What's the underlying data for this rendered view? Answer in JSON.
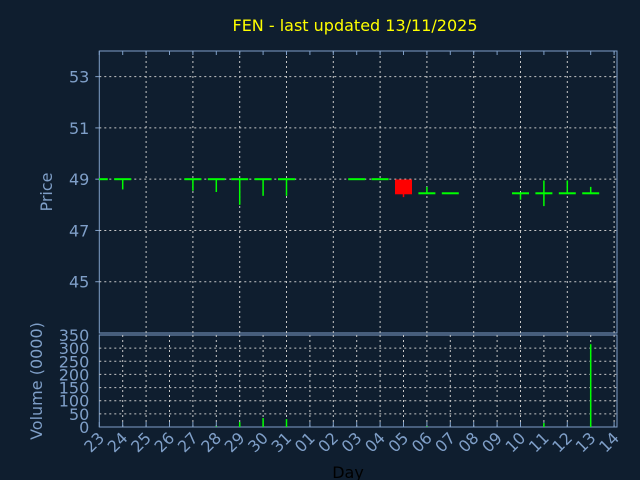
{
  "chart_data": [
    {
      "type": "candlestick",
      "title": "FEN - last updated 13/11/2025",
      "ylabel": "Price",
      "ylim": [
        43,
        54
      ],
      "yticks": [
        45,
        47,
        49,
        51,
        53
      ],
      "grid": true,
      "x_labels": [
        "23",
        "24",
        "25",
        "26",
        "27",
        "28",
        "29",
        "30",
        "31",
        "01",
        "02",
        "03",
        "04",
        "05",
        "06",
        "07",
        "08",
        "09",
        "10",
        "11",
        "12",
        "13",
        "14"
      ],
      "candles": [
        {
          "day": "23",
          "open": 49.0,
          "high": 49.0,
          "low": 49.0,
          "close": 49.0
        },
        {
          "day": "24",
          "open": 49.0,
          "high": 49.0,
          "low": 48.6,
          "close": 49.0
        },
        {
          "day": "27",
          "open": 49.0,
          "high": 49.0,
          "low": 48.55,
          "close": 49.0
        },
        {
          "day": "28",
          "open": 49.0,
          "high": 49.0,
          "low": 48.5,
          "close": 49.0
        },
        {
          "day": "29",
          "open": 49.0,
          "high": 49.0,
          "low": 48.0,
          "close": 49.0
        },
        {
          "day": "30",
          "open": 49.0,
          "high": 49.0,
          "low": 48.35,
          "close": 49.0
        },
        {
          "day": "31",
          "open": 49.0,
          "high": 49.0,
          "low": 48.35,
          "close": 49.0
        },
        {
          "day": "03",
          "open": 49.0,
          "high": 49.0,
          "low": 49.0,
          "close": 49.0
        },
        {
          "day": "04",
          "open": 49.0,
          "high": 49.0,
          "low": 49.0,
          "close": 49.0
        },
        {
          "day": "05",
          "open": 48.95,
          "high": 48.95,
          "low": 48.3,
          "close": 48.45
        },
        {
          "day": "06",
          "open": 48.45,
          "high": 48.7,
          "low": 48.45,
          "close": 48.45
        },
        {
          "day": "07",
          "open": 48.45,
          "high": 48.45,
          "low": 48.45,
          "close": 48.45
        },
        {
          "day": "10",
          "open": 48.45,
          "high": 48.45,
          "low": 48.2,
          "close": 48.45
        },
        {
          "day": "11",
          "open": 48.45,
          "high": 48.95,
          "low": 47.95,
          "close": 48.45
        },
        {
          "day": "12",
          "open": 48.45,
          "high": 48.95,
          "low": 48.45,
          "close": 48.45
        },
        {
          "day": "13",
          "open": 48.45,
          "high": 48.7,
          "low": 48.45,
          "close": 48.45
        }
      ],
      "colors": {
        "up": "#00ff00",
        "down": "#ff0000",
        "title": "#ffff00",
        "axis": "#7f9fc8",
        "grid": "#c8c8c8",
        "background": "#0f1e2f"
      }
    },
    {
      "type": "bar",
      "ylabel": "Volume (0000)",
      "xlabel": "Day",
      "ylim": [
        0,
        350
      ],
      "yticks": [
        0,
        50,
        100,
        150,
        200,
        250,
        300,
        350
      ],
      "grid": true,
      "bars": [
        {
          "day": "28",
          "value": 2
        },
        {
          "day": "29",
          "value": 19
        },
        {
          "day": "30",
          "value": 34
        },
        {
          "day": "31",
          "value": 30
        },
        {
          "day": "06",
          "value": 2
        },
        {
          "day": "11",
          "value": 15
        },
        {
          "day": "13",
          "value": 315
        }
      ],
      "colors": {
        "bar": "#00ff00"
      }
    }
  ]
}
